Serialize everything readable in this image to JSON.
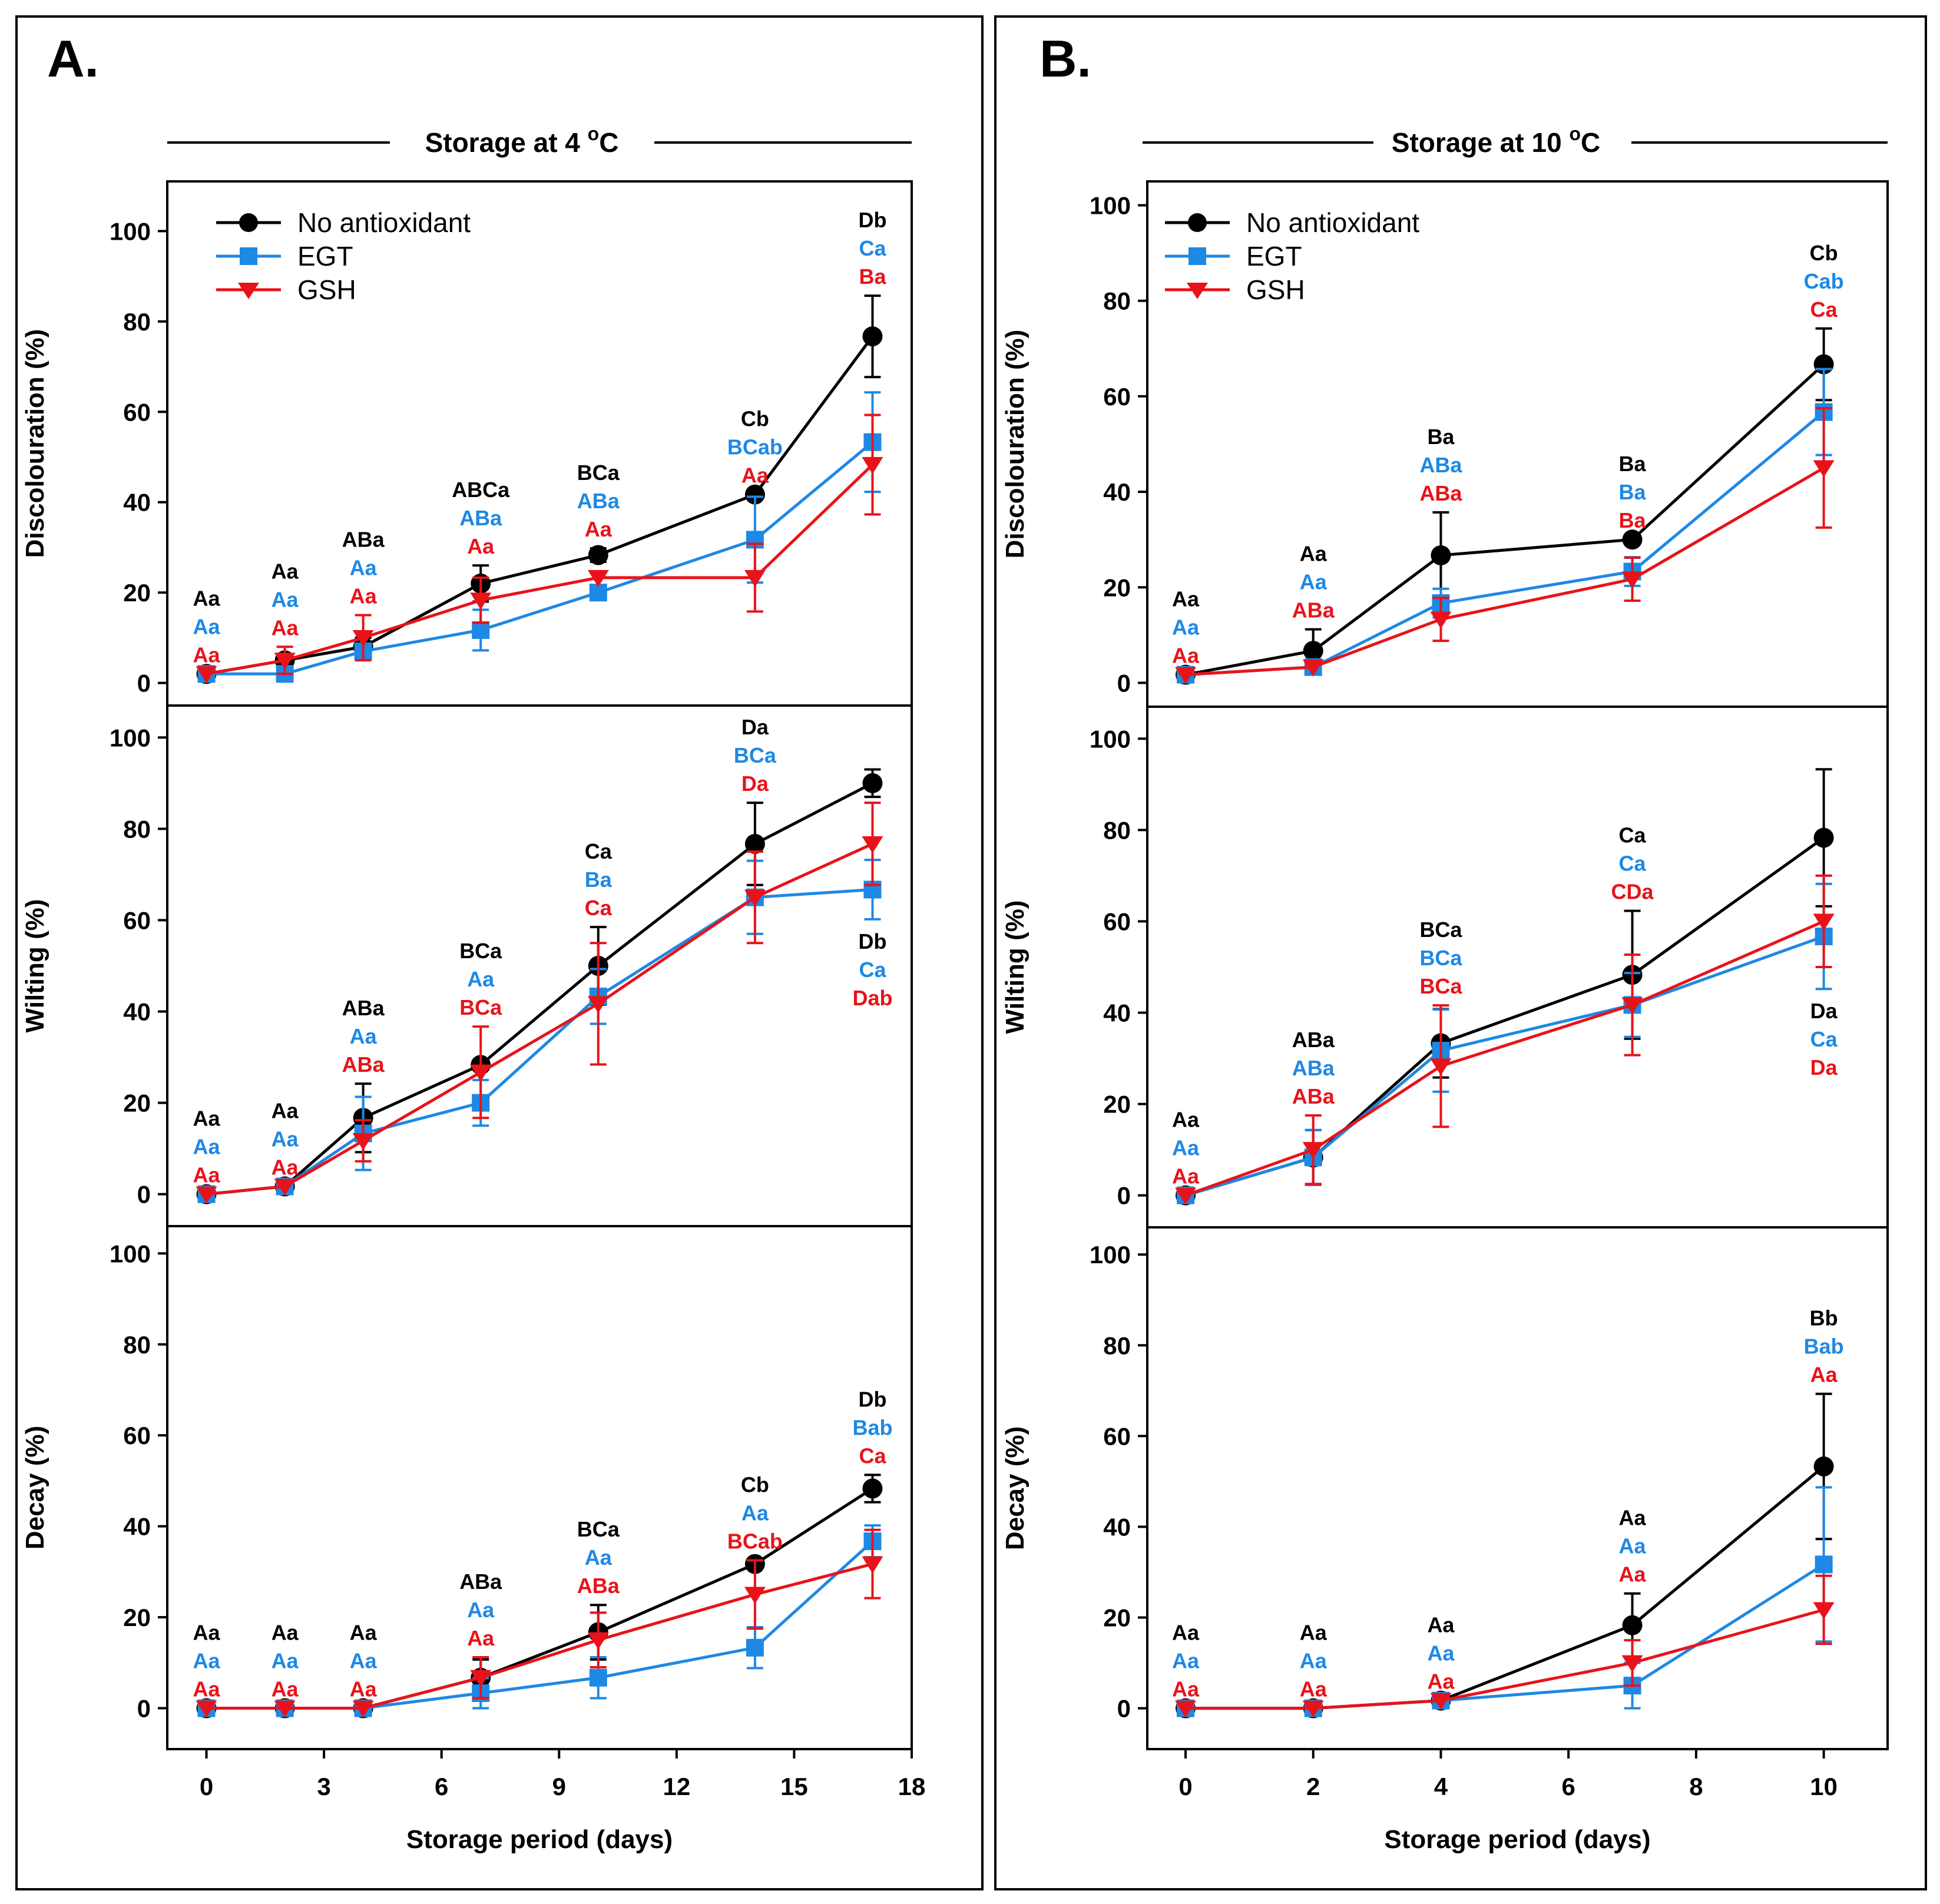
{
  "colors": {
    "no_antioxidant": "#000000",
    "egt": "#1e88e5",
    "gsh": "#e8131a"
  },
  "panels": [
    {
      "letter": "A.",
      "title_prefix": "Storage at 4 ",
      "title_sup": "o",
      "title_suffix": "C"
    },
    {
      "letter": "B.",
      "title_prefix": "Storage at 10 ",
      "title_sup": "o",
      "title_suffix": "C"
    }
  ],
  "legend": {
    "no_antioxidant": "No antioxidant",
    "egt": "EGT",
    "gsh": "GSH"
  },
  "chart_data": [
    {
      "type": "line",
      "panel": "A",
      "metric": "discolouration",
      "ylabel": "Discolouration (%)",
      "xlabel": "",
      "xlim": [
        -1,
        18
      ],
      "ylim": [
        -5,
        111
      ],
      "yticks": [
        0,
        20,
        40,
        60,
        80,
        100
      ],
      "x": [
        0,
        2,
        4,
        7,
        10,
        14,
        17
      ],
      "series": [
        {
          "name": "No antioxidant",
          "key": "no_antioxidant",
          "values": [
            2,
            5,
            8,
            22,
            28.3,
            41.7,
            76.7
          ],
          "errors": [
            0,
            1,
            2,
            4,
            1.5,
            0,
            9
          ]
        },
        {
          "name": "EGT",
          "key": "egt",
          "values": [
            2,
            2,
            7,
            11.7,
            20,
            31.7,
            53.3
          ],
          "errors": [
            0,
            0,
            1.5,
            4.5,
            0,
            9.5,
            11
          ]
        },
        {
          "name": "GSH",
          "key": "gsh",
          "values": [
            2,
            5,
            10,
            18.3,
            23.3,
            23.3,
            48.3
          ],
          "errors": [
            0,
            3,
            5,
            5,
            0,
            7.5,
            11
          ]
        }
      ],
      "letters": [
        {
          "x": 0,
          "position": "above",
          "labels": [
            "Aa",
            "Aa",
            "Aa"
          ]
        },
        {
          "x": 2,
          "position": "above",
          "labels": [
            "Aa",
            "Aa",
            "Aa"
          ]
        },
        {
          "x": 4,
          "position": "above",
          "labels": [
            "ABa",
            "Aa",
            "Aa"
          ]
        },
        {
          "x": 7,
          "position": "above",
          "labels": [
            "ABCa",
            "ABa",
            "Aa"
          ]
        },
        {
          "x": 10,
          "position": "above",
          "labels": [
            "BCa",
            "ABa",
            "Aa"
          ]
        },
        {
          "x": 14,
          "position": "above",
          "labels": [
            "Cb",
            "BCab",
            "Aa"
          ]
        },
        {
          "x": 17,
          "position": "above",
          "labels": [
            "Db",
            "Ca",
            "Ba"
          ]
        }
      ]
    },
    {
      "type": "line",
      "panel": "A",
      "metric": "wilting",
      "ylabel": "Wilting (%)",
      "xlabel": "",
      "xlim": [
        -1,
        18
      ],
      "ylim": [
        -7,
        107
      ],
      "yticks": [
        0,
        20,
        40,
        60,
        80,
        100
      ],
      "x": [
        0,
        2,
        4,
        7,
        10,
        14,
        17
      ],
      "series": [
        {
          "name": "No antioxidant",
          "key": "no_antioxidant",
          "values": [
            0,
            1.7,
            16.7,
            28.3,
            50,
            76.7,
            90
          ],
          "errors": [
            0,
            0,
            7.5,
            0,
            8.5,
            9,
            3
          ]
        },
        {
          "name": "EGT",
          "key": "egt",
          "values": [
            0,
            1.7,
            13.3,
            20,
            43.3,
            65,
            66.7
          ],
          "errors": [
            0,
            0,
            8,
            5,
            6,
            8,
            6.5
          ]
        },
        {
          "name": "GSH",
          "key": "gsh",
          "values": [
            0,
            1.7,
            11.7,
            26.7,
            41.7,
            65,
            76.7
          ],
          "errors": [
            0,
            0,
            4.5,
            10,
            13.3,
            10,
            9
          ]
        }
      ],
      "letters": [
        {
          "x": 0,
          "position": "above",
          "labels": [
            "Aa",
            "Aa",
            "Aa"
          ]
        },
        {
          "x": 2,
          "position": "above",
          "labels": [
            "Aa",
            "Aa",
            "Aa"
          ]
        },
        {
          "x": 4,
          "position": "above",
          "labels": [
            "ABa",
            "Aa",
            "ABa"
          ]
        },
        {
          "x": 7,
          "position": "above",
          "labels": [
            "BCa",
            "Aa",
            "BCa"
          ]
        },
        {
          "x": 10,
          "position": "above",
          "labels": [
            "Ca",
            "Ba",
            "Ca"
          ]
        },
        {
          "x": 14,
          "position": "above",
          "labels": [
            "Da",
            "BCa",
            "Da"
          ]
        },
        {
          "x": 17,
          "position": "below",
          "labels": [
            "Db",
            "Ca",
            "Dab"
          ]
        }
      ]
    },
    {
      "type": "line",
      "panel": "A",
      "metric": "decay",
      "ylabel": "Decay (%)",
      "xlabel": "Storage period (days)",
      "xlim": [
        -1,
        18
      ],
      "ylim": [
        -9,
        106
      ],
      "yticks": [
        0,
        20,
        40,
        60,
        80,
        100
      ],
      "xticks": [
        0,
        3,
        6,
        9,
        12,
        15,
        18
      ],
      "x": [
        0,
        2,
        4,
        7,
        10,
        14,
        17
      ],
      "series": [
        {
          "name": "No antioxidant",
          "key": "no_antioxidant",
          "values": [
            0,
            0,
            0,
            6.7,
            16.7,
            31.7,
            48.3
          ],
          "errors": [
            0,
            0,
            0,
            4,
            6,
            0,
            3
          ]
        },
        {
          "name": "EGT",
          "key": "egt",
          "values": [
            0,
            0,
            0,
            3.3,
            6.7,
            13.3,
            36.7
          ],
          "errors": [
            0,
            0,
            0,
            3.3,
            4.5,
            4.5,
            3.5
          ]
        },
        {
          "name": "GSH",
          "key": "gsh",
          "values": [
            0,
            0,
            0,
            6.7,
            15,
            25,
            31.7
          ],
          "errors": [
            0,
            0,
            0,
            4.5,
            6,
            7.5,
            7.5
          ]
        }
      ],
      "letters": [
        {
          "x": 0,
          "position": "above",
          "labels": [
            "Aa",
            "Aa",
            "Aa"
          ]
        },
        {
          "x": 2,
          "position": "above",
          "labels": [
            "Aa",
            "Aa",
            "Aa"
          ]
        },
        {
          "x": 4,
          "position": "above",
          "labels": [
            "Aa",
            "Aa",
            "Aa"
          ]
        },
        {
          "x": 7,
          "position": "above",
          "labels": [
            "ABa",
            "Aa",
            "Aa"
          ]
        },
        {
          "x": 10,
          "position": "above",
          "labels": [
            "BCa",
            "Aa",
            "ABa"
          ]
        },
        {
          "x": 14,
          "position": "above",
          "labels": [
            "Cb",
            "Aa",
            "BCab"
          ]
        },
        {
          "x": 17,
          "position": "above",
          "labels": [
            "Db",
            "Bab",
            "Ca"
          ]
        }
      ]
    },
    {
      "type": "line",
      "panel": "B",
      "metric": "discolouration",
      "ylabel": "Discolouration (%)",
      "xlabel": "",
      "xlim": [
        -0.6,
        11
      ],
      "ylim": [
        -5,
        105
      ],
      "yticks": [
        0,
        20,
        40,
        60,
        80,
        100
      ],
      "x": [
        0,
        2,
        4,
        7,
        10
      ],
      "series": [
        {
          "name": "No antioxidant",
          "key": "no_antioxidant",
          "values": [
            1.7,
            6.7,
            26.7,
            30,
            66.7
          ],
          "errors": [
            0,
            4.5,
            9,
            0,
            7.5
          ]
        },
        {
          "name": "EGT",
          "key": "egt",
          "values": [
            1.7,
            3.3,
            16.7,
            23.3,
            56.7
          ],
          "errors": [
            0,
            0,
            3,
            3,
            9
          ]
        },
        {
          "name": "GSH",
          "key": "gsh",
          "values": [
            1.7,
            3.3,
            13.3,
            21.7,
            45
          ],
          "errors": [
            0,
            0,
            4.5,
            4.5,
            12.5
          ]
        }
      ],
      "letters": [
        {
          "x": 0,
          "position": "above",
          "labels": [
            "Aa",
            "Aa",
            "Aa"
          ]
        },
        {
          "x": 2,
          "position": "above",
          "labels": [
            "Aa",
            "Aa",
            "ABa"
          ]
        },
        {
          "x": 4,
          "position": "above",
          "labels": [
            "Ba",
            "ABa",
            "ABa"
          ]
        },
        {
          "x": 7,
          "position": "above",
          "labels": [
            "Ba",
            "Ba",
            "Ba"
          ]
        },
        {
          "x": 10,
          "position": "above",
          "labels": [
            "Cb",
            "Cab",
            "Ca"
          ]
        }
      ]
    },
    {
      "type": "line",
      "panel": "B",
      "metric": "wilting",
      "ylabel": "Wilting (%)",
      "xlabel": "",
      "xlim": [
        -0.6,
        11
      ],
      "ylim": [
        -7,
        107
      ],
      "yticks": [
        0,
        20,
        40,
        60,
        80,
        100
      ],
      "x": [
        0,
        2,
        4,
        7,
        10
      ],
      "series": [
        {
          "name": "No antioxidant",
          "key": "no_antioxidant",
          "values": [
            0,
            8.3,
            33.3,
            48.3,
            78.3
          ],
          "errors": [
            0,
            6,
            7.5,
            14,
            15
          ]
        },
        {
          "name": "EGT",
          "key": "egt",
          "values": [
            0,
            8.3,
            31.7,
            41.7,
            56.7
          ],
          "errors": [
            0,
            6,
            9,
            7,
            11.5
          ]
        },
        {
          "name": "GSH",
          "key": "gsh",
          "values": [
            0,
            10,
            28.3,
            41.7,
            60
          ],
          "errors": [
            0,
            7.5,
            13.3,
            11,
            10
          ]
        }
      ],
      "letters": [
        {
          "x": 0,
          "position": "above",
          "labels": [
            "Aa",
            "Aa",
            "Aa"
          ]
        },
        {
          "x": 2,
          "position": "above",
          "labels": [
            "ABa",
            "ABa",
            "ABa"
          ]
        },
        {
          "x": 4,
          "position": "above",
          "labels": [
            "BCa",
            "BCa",
            "BCa"
          ]
        },
        {
          "x": 7,
          "position": "above",
          "labels": [
            "Ca",
            "Ca",
            "CDa"
          ]
        },
        {
          "x": 10,
          "position": "below",
          "labels": [
            "Da",
            "Ca",
            "Da"
          ]
        }
      ]
    },
    {
      "type": "line",
      "panel": "B",
      "metric": "decay",
      "ylabel": "Decay (%)",
      "xlabel": "Storage period (days)",
      "xlim": [
        -0.6,
        11
      ],
      "ylim": [
        -9,
        106
      ],
      "yticks": [
        0,
        20,
        40,
        60,
        80,
        100
      ],
      "xticks": [
        0,
        2,
        4,
        6,
        8,
        10
      ],
      "x": [
        0,
        2,
        4,
        7,
        10
      ],
      "series": [
        {
          "name": "No antioxidant",
          "key": "no_antioxidant",
          "values": [
            0,
            0,
            1.7,
            18.3,
            53.3
          ],
          "errors": [
            0,
            0,
            0,
            7,
            16
          ]
        },
        {
          "name": "EGT",
          "key": "egt",
          "values": [
            0,
            0,
            1.7,
            5,
            31.7
          ],
          "errors": [
            0,
            0,
            0,
            5,
            17
          ]
        },
        {
          "name": "GSH",
          "key": "gsh",
          "values": [
            0,
            0,
            1.7,
            10,
            21.7
          ],
          "errors": [
            0,
            0,
            0,
            5,
            7.5
          ]
        }
      ],
      "letters": [
        {
          "x": 0,
          "position": "above",
          "labels": [
            "Aa",
            "Aa",
            "Aa"
          ]
        },
        {
          "x": 2,
          "position": "above",
          "labels": [
            "Aa",
            "Aa",
            "Aa"
          ]
        },
        {
          "x": 4,
          "position": "above",
          "labels": [
            "Aa",
            "Aa",
            "Aa"
          ]
        },
        {
          "x": 7,
          "position": "above",
          "labels": [
            "Aa",
            "Aa",
            "Aa"
          ]
        },
        {
          "x": 10,
          "position": "above",
          "labels": [
            "Bb",
            "Bab",
            "Aa"
          ]
        }
      ]
    }
  ]
}
